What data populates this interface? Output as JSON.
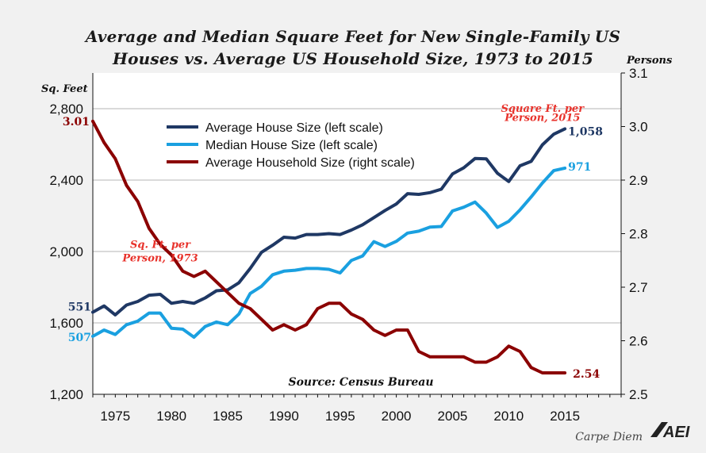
{
  "chart_data": {
    "type": "line",
    "title_line1": "Average and Median Square Feet for New Single-Family US",
    "title_line2": "Houses vs. Average US Household Size, 1973 to 2015",
    "ylabel_left": "Sq. Feet",
    "ylabel_right": "Persons",
    "xlim": [
      1973,
      2020
    ],
    "ylim_left": [
      1200,
      3000
    ],
    "ylim_right": [
      2.5,
      3.1
    ],
    "x_ticks": [
      1975,
      1980,
      1985,
      1990,
      1995,
      2000,
      2005,
      2010,
      2015
    ],
    "y_ticks_left": [
      1200,
      1600,
      2000,
      2400,
      2800
    ],
    "y_ticks_left_labels": [
      "1,200",
      "1,600",
      "2,000",
      "2,400",
      "2,800"
    ],
    "y_ticks_right": [
      2.5,
      2.6,
      2.7,
      2.8,
      2.9,
      3.0,
      3.1
    ],
    "y_ticks_right_labels": [
      "2.5",
      "2.6",
      "2.7",
      "2.8",
      "2.9",
      "3.0",
      "3.1"
    ],
    "grid": true,
    "legend_position": "top-center",
    "series": [
      {
        "name": "Average House Size (left scale)",
        "axis": "left",
        "color": "#1f3864",
        "x": [
          1973,
          1974,
          1975,
          1976,
          1977,
          1978,
          1979,
          1980,
          1981,
          1982,
          1983,
          1984,
          1985,
          1986,
          1987,
          1988,
          1989,
          1990,
          1991,
          1992,
          1993,
          1994,
          1995,
          1996,
          1997,
          1998,
          1999,
          2000,
          2001,
          2002,
          2003,
          2004,
          2005,
          2006,
          2007,
          2008,
          2009,
          2010,
          2011,
          2012,
          2013,
          2014,
          2015
        ],
        "values": [
          1660,
          1695,
          1645,
          1700,
          1720,
          1755,
          1760,
          1710,
          1720,
          1710,
          1740,
          1780,
          1785,
          1825,
          1905,
          1995,
          2035,
          2080,
          2075,
          2095,
          2095,
          2100,
          2095,
          2120,
          2150,
          2190,
          2230,
          2266,
          2324,
          2320,
          2330,
          2349,
          2434,
          2469,
          2521,
          2519,
          2438,
          2392,
          2480,
          2505,
          2598,
          2657,
          2687
        ]
      },
      {
        "name": "Median House Size (left scale)",
        "axis": "left",
        "color": "#1aa0e0",
        "x": [
          1973,
          1974,
          1975,
          1976,
          1977,
          1978,
          1979,
          1980,
          1981,
          1982,
          1983,
          1984,
          1985,
          1986,
          1987,
          1988,
          1989,
          1990,
          1991,
          1992,
          1993,
          1994,
          1995,
          1996,
          1997,
          1998,
          1999,
          2000,
          2001,
          2002,
          2003,
          2004,
          2005,
          2006,
          2007,
          2008,
          2009,
          2010,
          2011,
          2012,
          2013,
          2014,
          2015
        ],
        "values": [
          1525,
          1560,
          1535,
          1590,
          1610,
          1655,
          1655,
          1570,
          1565,
          1520,
          1580,
          1605,
          1590,
          1650,
          1765,
          1805,
          1870,
          1890,
          1895,
          1905,
          1905,
          1900,
          1880,
          1950,
          1975,
          2055,
          2028,
          2057,
          2103,
          2114,
          2137,
          2140,
          2227,
          2248,
          2277,
          2215,
          2135,
          2169,
          2233,
          2306,
          2384,
          2453,
          2467
        ]
      },
      {
        "name": "Average Household Size (right scale)",
        "axis": "right",
        "color": "#8b0000",
        "x": [
          1973,
          1974,
          1975,
          1976,
          1977,
          1978,
          1979,
          1980,
          1981,
          1982,
          1983,
          1984,
          1985,
          1986,
          1987,
          1988,
          1989,
          1990,
          1991,
          1992,
          1993,
          1994,
          1995,
          1996,
          1997,
          1998,
          1999,
          2000,
          2001,
          2002,
          2003,
          2004,
          2005,
          2006,
          2007,
          2008,
          2009,
          2010,
          2011,
          2012,
          2013,
          2014,
          2015
        ],
        "values": [
          3.01,
          2.97,
          2.94,
          2.89,
          2.86,
          2.81,
          2.78,
          2.76,
          2.73,
          2.72,
          2.73,
          2.71,
          2.69,
          2.67,
          2.66,
          2.64,
          2.62,
          2.63,
          2.62,
          2.63,
          2.66,
          2.67,
          2.67,
          2.65,
          2.64,
          2.62,
          2.61,
          2.62,
          2.62,
          2.58,
          2.57,
          2.57,
          2.57,
          2.57,
          2.56,
          2.56,
          2.57,
          2.59,
          2.58,
          2.55,
          2.54,
          2.54,
          2.54
        ]
      }
    ],
    "annotations": [
      {
        "text": "3.01",
        "color": "#8b0000",
        "style": "value",
        "x": 1973,
        "y": 3.01,
        "axis": "right",
        "anchor": "end",
        "dx": -4,
        "dy": 5
      },
      {
        "text": "551",
        "color": "#1f3864",
        "style": "value",
        "x": 1973,
        "y": 1660,
        "axis": "left",
        "anchor": "end",
        "dx": -2,
        "dy": -2
      },
      {
        "text": "507",
        "color": "#1aa0e0",
        "style": "value",
        "x": 1973,
        "y": 1525,
        "axis": "left",
        "anchor": "end",
        "dx": -2,
        "dy": 6
      },
      {
        "text": "1,058",
        "color": "#1f3864",
        "style": "value",
        "x": 2015,
        "y": 2687,
        "axis": "left",
        "anchor": "start",
        "dx": 4,
        "dy": 8
      },
      {
        "text": "971",
        "color": "#1aa0e0",
        "style": "value",
        "x": 2015,
        "y": 2467,
        "axis": "left",
        "anchor": "start",
        "dx": 4,
        "dy": 3
      },
      {
        "text": "2.54",
        "color": "#8b0000",
        "style": "value",
        "x": 2015,
        "y": 2.54,
        "axis": "right",
        "anchor": "start",
        "dx": 10,
        "dy": 6
      },
      {
        "text": "Sq. Ft. per",
        "color": "#e8322b",
        "style": "italic",
        "x": 1979,
        "y": 2020,
        "axis": "left",
        "anchor": "middle",
        "dx": 0,
        "dy": 0
      },
      {
        "text": "Person, 1973",
        "color": "#e8322b",
        "style": "italic",
        "x": 1979,
        "y": 1945,
        "axis": "left",
        "anchor": "middle",
        "dx": 0,
        "dy": 0
      },
      {
        "text": "Square Ft. per",
        "color": "#e8322b",
        "style": "italic",
        "x": 2013,
        "y": 2.995,
        "axis": "right",
        "anchor": "middle",
        "dx": 0,
        "dy": -22
      },
      {
        "text": "Person, 2015",
        "color": "#e8322b",
        "style": "italic",
        "x": 2013,
        "y": 3.0,
        "axis": "right",
        "anchor": "middle",
        "dx": 0,
        "dy": -7
      }
    ],
    "source": "Source: Census Bureau",
    "credit": "Carpe Diem",
    "logo_text": "AEI"
  }
}
